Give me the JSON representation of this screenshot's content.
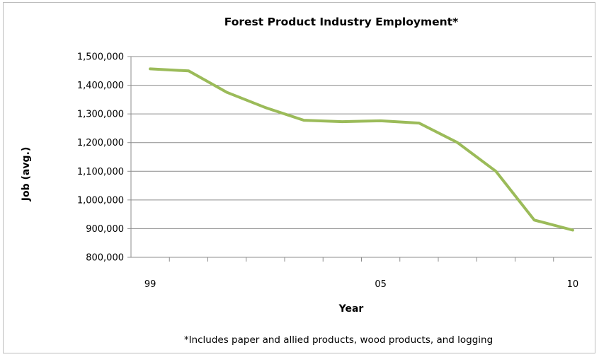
{
  "colors": {
    "line": "#9bbb59",
    "gridline": "#8c8c8c",
    "axis": "#8c8c8c",
    "border": "#bdbdbd"
  },
  "chart_data": {
    "type": "line",
    "title": "Forest Product Industry Employment*",
    "xlabel": "Year",
    "ylabel": "Job (avg.)",
    "footnote": "*Includes paper and allied products, wood products, and logging",
    "x": [
      1999,
      2000,
      2001,
      2002,
      2003,
      2004,
      2005,
      2006,
      2007,
      2008,
      2009,
      2010
    ],
    "x_tick_labels": [
      {
        "x": 1999,
        "label": "99"
      },
      {
        "x": 2005,
        "label": "05"
      },
      {
        "x": 2010,
        "label": "10"
      }
    ],
    "series": [
      {
        "values": [
          1457000,
          1450000,
          1375000,
          1322000,
          1278000,
          1273000,
          1276000,
          1268000,
          1200000,
          1100000,
          930000,
          895000
        ]
      }
    ],
    "ylim": [
      800000,
      1500000
    ],
    "y_ticks": [
      800000,
      900000,
      1000000,
      1100000,
      1200000,
      1300000,
      1400000,
      1500000
    ],
    "y_tick_labels": [
      "800,000",
      "900,000",
      "1,000,000",
      "1,100,000",
      "1,200,000",
      "1,300,000",
      "1,400,000",
      "1,500,000"
    ],
    "grid": true,
    "legend": "none"
  }
}
